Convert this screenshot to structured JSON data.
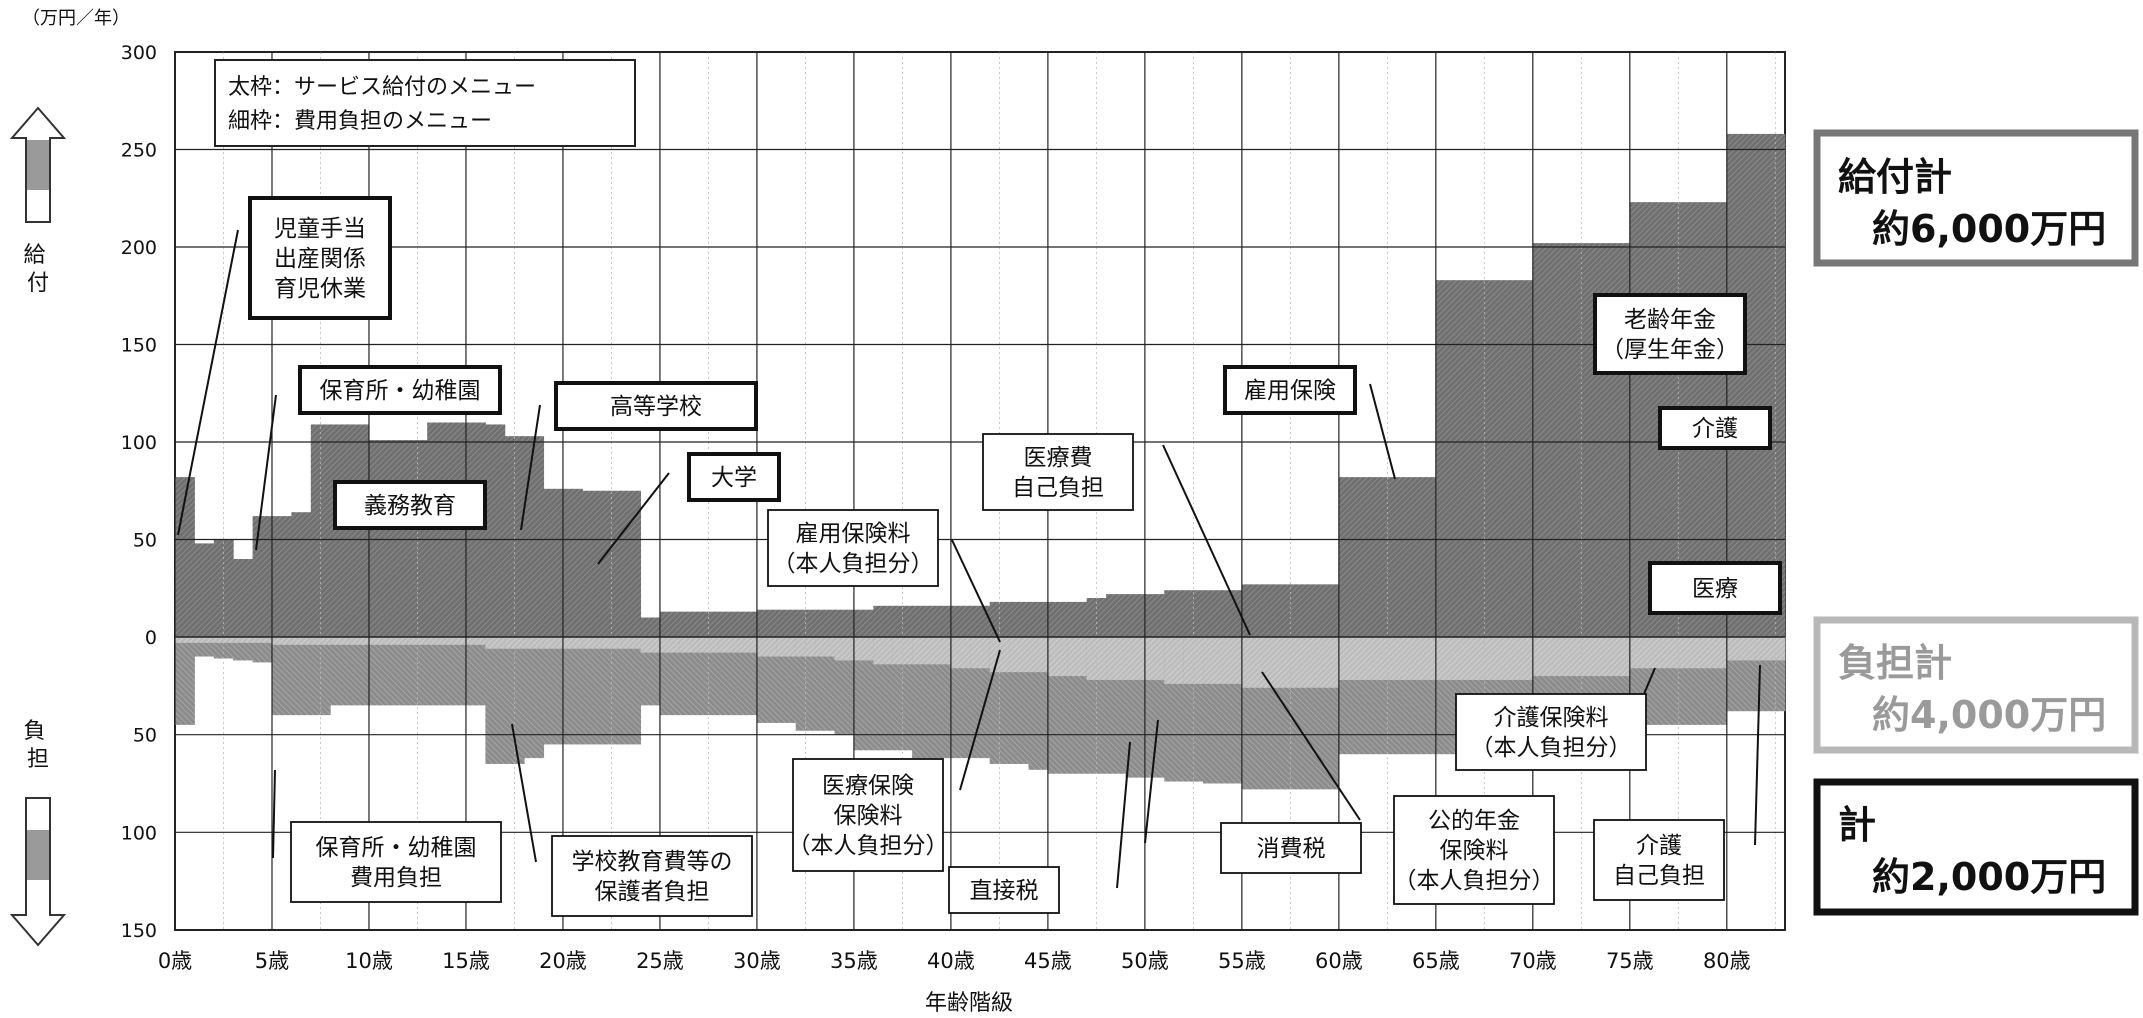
{
  "chart_data": {
    "type": "area",
    "unit_label": "（万円／年）",
    "xlabel": "年齢階級",
    "x_ticks": [
      "0歳",
      "5歳",
      "10歳",
      "15歳",
      "20歳",
      "25歳",
      "30歳",
      "35歳",
      "40歳",
      "45歳",
      "50歳",
      "55歳",
      "60歳",
      "65歳",
      "70歳",
      "75歳",
      "80歳"
    ],
    "y_ticks_benefit": [
      "300",
      "250",
      "200",
      "150",
      "100",
      "50",
      "0"
    ],
    "y_ticks_burden": [
      "50",
      "100",
      "150"
    ],
    "ylim_benefit": [
      0,
      300
    ],
    "ylim_burden": [
      0,
      150
    ],
    "benefit_axis_label": "給付",
    "burden_axis_label": "負担",
    "legend_box": [
      "太枠：サービス給付のメニュー",
      "細枠：費用負担のメニュー"
    ],
    "benefit_series": {
      "name": "給付",
      "x_start": [
        0,
        1,
        2,
        3,
        4,
        5,
        6,
        7,
        8,
        9,
        10,
        11,
        12,
        13,
        14,
        15,
        16,
        17,
        18,
        19,
        20,
        21,
        22,
        23,
        24,
        25,
        26,
        27,
        28,
        29,
        30,
        31,
        32,
        33,
        34,
        35,
        36,
        37,
        38,
        39,
        40,
        41,
        42,
        43,
        44,
        45,
        46,
        47,
        48,
        49,
        50,
        51,
        52,
        53,
        54,
        55,
        60,
        65,
        70,
        75,
        80
      ],
      "total": [
        82,
        48,
        50,
        40,
        62,
        62,
        64,
        109,
        109,
        109,
        101,
        101,
        101,
        110,
        110,
        110,
        109,
        103,
        103,
        76,
        76,
        75,
        75,
        75,
        10,
        13,
        13,
        13,
        13,
        13,
        14,
        14,
        14,
        14,
        14,
        14,
        16,
        16,
        16,
        16,
        16,
        16,
        18,
        18,
        18,
        18,
        18,
        20,
        22,
        22,
        22,
        24,
        24,
        24,
        24,
        27,
        82,
        183,
        202,
        223,
        258
      ]
    },
    "burden_series": {
      "name": "負担",
      "x_start": [
        0,
        1,
        2,
        3,
        4,
        5,
        6,
        7,
        8,
        9,
        10,
        11,
        12,
        13,
        14,
        15,
        16,
        17,
        18,
        19,
        20,
        21,
        22,
        23,
        24,
        25,
        26,
        27,
        28,
        29,
        30,
        31,
        32,
        33,
        34,
        35,
        36,
        37,
        38,
        39,
        40,
        41,
        42,
        43,
        44,
        45,
        46,
        47,
        48,
        49,
        50,
        51,
        52,
        53,
        54,
        55,
        60,
        65,
        70,
        75,
        80
      ],
      "light": [
        45,
        10,
        11,
        12,
        13,
        40,
        40,
        40,
        35,
        35,
        35,
        35,
        35,
        35,
        35,
        35,
        65,
        65,
        62,
        55,
        55,
        55,
        55,
        55,
        35,
        40,
        40,
        40,
        40,
        40,
        44,
        44,
        48,
        48,
        50,
        58,
        58,
        58,
        62,
        62,
        62,
        62,
        65,
        65,
        68,
        70,
        70,
        70,
        70,
        72,
        72,
        74,
        74,
        75,
        75,
        78,
        60,
        60,
        60,
        45,
        38
      ],
      "dark": [
        3,
        3,
        3,
        3,
        3,
        4,
        4,
        4,
        4,
        4,
        4,
        4,
        4,
        4,
        4,
        4,
        6,
        6,
        6,
        6,
        6,
        6,
        6,
        6,
        8,
        8,
        8,
        8,
        8,
        8,
        10,
        10,
        10,
        10,
        12,
        12,
        14,
        14,
        14,
        14,
        16,
        16,
        18,
        18,
        18,
        20,
        20,
        22,
        22,
        22,
        22,
        24,
        24,
        24,
        24,
        26,
        22,
        22,
        20,
        16,
        12
      ]
    },
    "benefit_labels": [
      "児童手当\n出産関係\n育児休業",
      "保育所・幼稚園",
      "義務教育",
      "高等学校",
      "大学",
      "雇用保険",
      "老齢年金\n（厚生年金）",
      "介護",
      "医療"
    ],
    "burden_labels": [
      "雇用保険料\n（本人負担分）",
      "医療費\n自己負担",
      "医療保険\n保険料\n（本人負担分）",
      "直接税",
      "消費税",
      "公的年金\n保険料\n（本人負担分）",
      "介護保険料\n（本人負担分）",
      "介護\n自己負担",
      "保育所・幼稚園\n費用負担",
      "学校教育費等の\n保護者負担"
    ],
    "summary": {
      "benefit_title": "給付計",
      "benefit_value": "約6,000万円",
      "burden_title": "負担計",
      "burden_value": "約4,000万円",
      "net_title": "計",
      "net_value": "約2,000万円"
    },
    "colors": {
      "benefit_fill": "#6e6e6e",
      "burden_fill": "#8a8a8a",
      "burden_dark": "#5a5a5a",
      "grid": "#222222",
      "arrow_up": "#888888"
    }
  }
}
